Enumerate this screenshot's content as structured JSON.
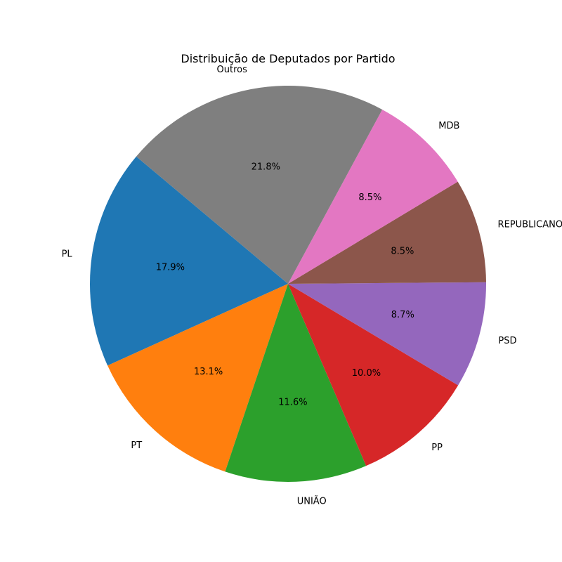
{
  "chart_data": {
    "type": "pie",
    "title": "Distribuição de Deputados por Partido",
    "categories": [
      "PL",
      "PT",
      "UNIÃO",
      "PP",
      "PSD",
      "REPUBLICANOS",
      "MDB",
      "Outros"
    ],
    "values": [
      17.9,
      13.1,
      11.6,
      10.0,
      8.7,
      8.5,
      8.5,
      21.8
    ],
    "value_labels": [
      "17.9%",
      "13.1%",
      "11.6%",
      "10.0%",
      "8.7%",
      "8.5%",
      "8.5%",
      "21.8%"
    ],
    "colors": [
      "#1f77b4",
      "#ff7f0e",
      "#2ca02c",
      "#d62728",
      "#9467bd",
      "#8c564b",
      "#e377c2",
      "#7f7f7f"
    ],
    "start_angle": 140,
    "direction": "counterclockwise",
    "legend": "none"
  }
}
